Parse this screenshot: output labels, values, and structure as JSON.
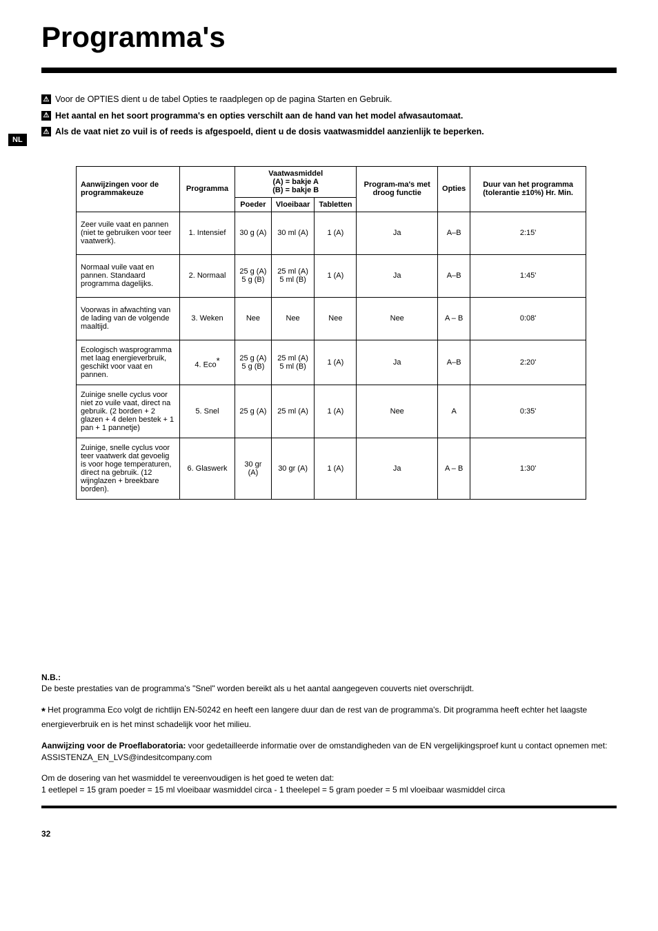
{
  "page": {
    "title": "Programma's",
    "lang_badge": "NL",
    "page_number": "32"
  },
  "warnings": {
    "line1": "Voor de OPTIES dient u de tabel Opties te raadplegen op de pagina Starten en Gebruik.",
    "line2": "Het aantal en het soort programma's en opties verschilt aan de hand van het model afwasautomaat.",
    "line3": "Als de vaat niet zo vuil is of reeds is afgespoeld, dient u de dosis vaatwasmiddel aanzienlijk te beperken."
  },
  "table": {
    "headers": {
      "col1": "Aanwijzingen voor de programmakeuze",
      "col2": "Programma",
      "detergent_group": "Vaatwasmiddel",
      "detergent_sub_a": "(A) = bakje A",
      "detergent_sub_b": "(B) = bakje B",
      "poeder": "Poeder",
      "vloeibaar": "Vloeibaar",
      "tabletten": "Tabletten",
      "droog": "Program-ma's met droog functie",
      "opties": "Opties",
      "duur": "Duur van het programma (tolerantie ±10%) Hr. Min."
    },
    "rows": [
      {
        "desc": "Zeer vuile vaat en pannen (niet te gebruiken voor teer vaatwerk).",
        "prog": "1. Intensief",
        "poeder": "30 g (A)",
        "vloeibaar": "30 ml (A)",
        "tabletten": "1 (A)",
        "droog": "Ja",
        "opties": "A–B",
        "duur": "2:15'"
      },
      {
        "desc": "Normaal vuile vaat en pannen. Standaard programma dagelijks.",
        "prog": "2. Normaal",
        "poeder": "25 g (A)\n5 g (B)",
        "vloeibaar": "25 ml (A)\n5 ml (B)",
        "tabletten": "1 (A)",
        "droog": "Ja",
        "opties": "A–B",
        "duur": "1:45'"
      },
      {
        "desc": "Voorwas in afwachting van de lading van de volgende maaltijd.",
        "prog": "3. Weken",
        "poeder": "Nee",
        "vloeibaar": "Nee",
        "tabletten": "Nee",
        "droog": "Nee",
        "opties": "A – B",
        "duur": "0:08'"
      },
      {
        "desc": "Ecologisch wasprogramma met laag energieverbruik, geschikt voor vaat en pannen.",
        "prog": "4. Eco",
        "poeder": "25 g (A)\n5 g (B)",
        "vloeibaar": "25 ml (A)\n5 ml (B)",
        "tabletten": "1 (A)",
        "droog": "Ja",
        "opties": "A–B",
        "duur": "2:20'"
      },
      {
        "desc": "Zuinige snelle cyclus voor niet zo vuile vaat, direct na gebruik. (2 borden + 2 glazen + 4 delen bestek + 1 pan + 1 pannetje)",
        "prog": "5. Snel",
        "poeder": "25 g (A)",
        "vloeibaar": "25 ml (A)",
        "tabletten": "1 (A)",
        "droog": "Nee",
        "opties": "A",
        "duur": "0:35'"
      },
      {
        "desc": "Zuinige, snelle cyclus voor teer vaatwerk dat gevoelig is voor hoge temperaturen, direct na gebruik. (12 wijnglazen + breekbare borden).",
        "prog": "6. Glaswerk",
        "poeder": "30 gr (A)",
        "vloeibaar": "30 gr (A)",
        "tabletten": "1 (A)",
        "droog": "Ja",
        "opties": "A – B",
        "duur": "1:30'"
      }
    ]
  },
  "notes": {
    "nb_label": "N.B.:",
    "nb_text": "De beste prestaties van de programma's \"Snel\" worden bereikt als u het aantal aangegeven couverts niet overschrijdt.",
    "star_text": " Het programma Eco volgt de richtlijn EN-50242 en heeft een langere duur dan de rest van de programma's. Dit programma heeft echter het laagste energieverbruik en is het minst schadelijk voor het milieu.",
    "lab_label": "Aanwijzing voor de Proeflaboratoria:",
    "lab_text": " voor gedetailleerde informatie over de omstandigheden van de EN vergelijkingsproef kunt u contact opnemen met: ASSISTENZA_EN_LVS@indesitcompany.com",
    "dosing_line1": "Om de dosering van het wasmiddel te vereenvoudigen is het goed te weten dat:",
    "dosing_line2": "1 eetlepel = 15 gram poeder = 15 ml vloeibaar wasmiddel circa - 1 theelepel = 5 gram poeder = 5 ml vloeibaar wasmiddel circa"
  }
}
